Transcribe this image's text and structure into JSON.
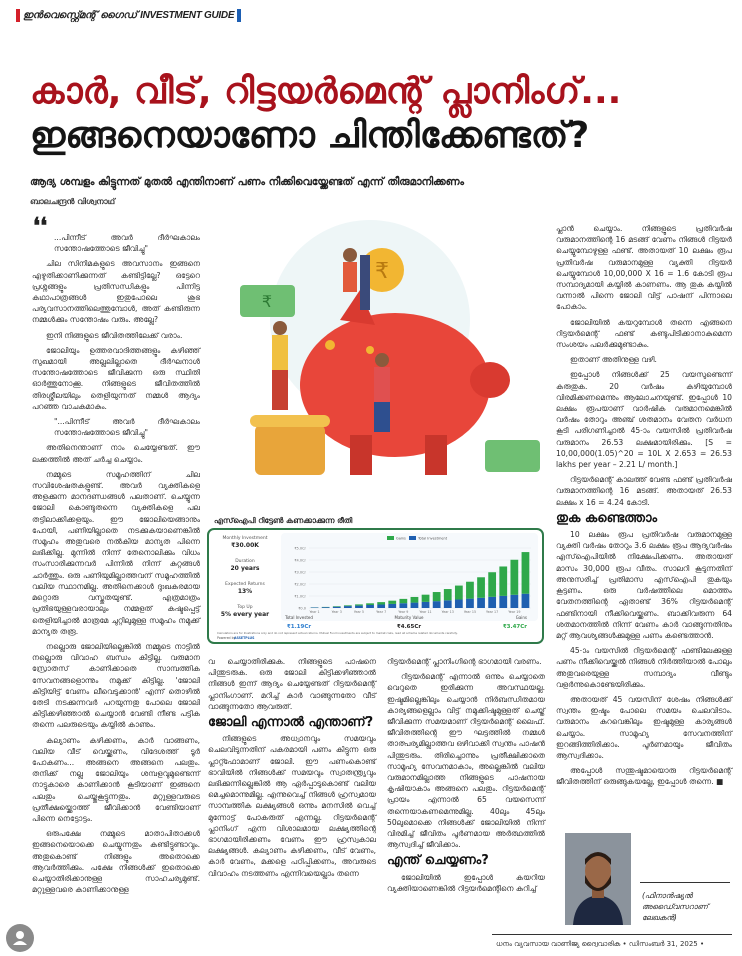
{
  "section_tag": {
    "ml": "ഇൻവെസ്റ്റ്മെന്റ് ഗൈഡ്",
    "en": "INVESTMENT GUIDE",
    "colors": {
      "left_bar": "#d4202a",
      "right_bar": "#1d5fb3"
    }
  },
  "headline": {
    "line1": "കാർ, വീട്, റിട്ടയർമെന്റ് പ്ലാനിംഗ്...",
    "line2": "ഇങ്ങനെയാണോ ചിന്തിക്കേണ്ടത്?",
    "colors": {
      "line1": "#a8121c",
      "line2": "#151515"
    }
  },
  "subheadline": "ആദ്യ ശമ്പളം കിട്ടുന്നത് മുതൽ എന്തിനാണ് പണം നീക്കിവെയ്ക്കേണ്ടത് എന്ന് തീരുമാനിക്കണം",
  "author": "ബാലചന്ദ്രൻ വിശ്വനാഥ്",
  "quote_mark": "❛❛",
  "column1": [
    {
      "type": "quote",
      "text": "...പിന്നീട് അവർ ദീർഘകാലം സന്തോഷത്തോടെ ജീവിച്ചു\""
    },
    {
      "type": "p",
      "text": "ചില സിനിമകളുടെ അവസാനം ഇങ്ങനെ എഴുതിക്കാണിക്കുന്നത് കണ്ടിട്ടില്ലേ? ഒട്ടേറെ പ്രശ്നങ്ങളും പ്രതിസന്ധികളും പിന്നിട്ട കഥാപാത്രങ്ങൾ ഇതുപോലെ ശുഭ പര്യവസാനത്തിലെത്തുമ്പോൾ, അത് കണ്ടിരുന്ന നമ്മൾക്കും സന്തോഷം വരും. അല്ലേ?"
    },
    {
      "type": "p",
      "text": "ഇനി നിങ്ങളുടെ ജീവിതത്തിലേക്ക് വരാം."
    },
    {
      "type": "p",
      "text": "ജോലിയും ഉത്തരവാദിത്തങ്ങളും കഴിഞ്ഞ് സുഖമായി അല്ലലില്ലാതെ ദീർഘനാൾ സന്തോഷത്തോടെ ജീവിക്കുന്ന ഒരു സ്ഥിതി ഓർത്തുനോക്കൂ. നിങ്ങളുടെ ജീവിതത്തിൽ തിരശ്ശീലയിലും തെളിയുന്നത് നമ്മൾ ആദ്യം പറഞ്ഞ വാചകമാകും."
    },
    {
      "type": "quote",
      "text": "\"...പിന്നീട് അവർ ദീർഘകാലം സന്തോഷത്തോടെ ജീവിച്ചു\""
    },
    {
      "type": "p",
      "text": "അതിനെന്താണ് നാം ചെയ്യേണ്ടത്. ഈ ലക്കത്തിൽ അത് ചർച്ച ചെയ്യാം."
    },
    {
      "type": "p",
      "text": "നമ്മുടെ സമൂഹത്തിന് ചില സവിശേഷതകളുണ്ട്. അവർ വ്യക്തികളെ അളക്കുന്ന മാനദണ്ഡങ്ങൾ പലതാണ്. ചെയ്യുന്ന ജോലി കൊണ്ടുതന്നെ വ്യക്തികളെ പല തട്ടിലാക്കിക്കളയും. ഈ ജോലിയെങ്ങാനും പോയി, പണിയില്ലാതെ നടക്കുകയാണെങ്കിൽ സമൂഹം അതുവരെ നൽകിയ മാന്യത പിന്നെ ലഭിക്കില്ല. മുന്നിൽ നിന്ന് തേനൊലിക്കും വിധം സംസാരിക്കുന്നവർ പിന്നിൽ നിന്ന് കുറ്റങ്ങൾ ചാർത്തും. ഒരു പണിയുമില്ലാത്തവന് സമൂഹത്തിൽ വലിയ സ്ഥാനമില്ല. അതിനെക്കാൾ ദുഃഖകരമായ മറ്റൊരു വസ്തുതയുണ്ട്. എത്രമാത്രം പ്രതിഭയുള്ളവരായാലും നമ്മളത് കഷ്ടപ്പെട്ട് തെളിയിച്ചാൽ മാത്രമേ ചുറ്റിലുമുള്ള സമൂഹം നമുക്ക് മാന്യത തരൂ."
    },
    {
      "type": "p",
      "text": "നല്ലൊരു ജോലിയില്ലെങ്കിൽ നമ്മുടെ നാട്ടിൽ നല്ലൊരു വിവാഹ ബന്ധം കിട്ടില്ല. വരുമാന സ്രോതസ് കാണിക്കാതെ സാമ്പത്തിക സേവനങ്ങളൊന്നും നമുക്ക് കിട്ടില്ല. 'ജോലി കിട്ടിയിട്ട് വേണം ലീവെടുക്കാൻ' എന്ന് തൊഴിൽ തേടി നടക്കുന്നവർ പറയുന്നതു പോലെ ജോലി കിട്ടിക്കഴിഞ്ഞാൽ ചെയ്യാൻ വേണ്ടി നീണ്ട പട്ടിക തന്നെ പലരുടെയും കയ്യിൽ കാണും."
    },
    {
      "type": "p",
      "text": "കല്യാണം കഴിക്കണം, കാർ വാങ്ങണം, വലിയ വീട് വെയ്ക്കണം, വിദേശത്ത് ടൂർ പോകണം... അങ്ങനെ അങ്ങനെ പലതും. തനിക്ക് നല്ല ജോലിയും ശമ്പളവുമുണ്ടെന്ന് നാട്ടുകാരെ കാണിക്കാൻ കൂടിയാണ് ഇങ്ങനെ പലതും ചെയ്തുകൂട്ടുന്നതും. മറ്റുള്ളവരുടെ പ്രതീക്ഷയ്ക്കൊത്ത് ജീവിക്കാൻ വേണ്ടിയാണ് പിന്നെ നെട്ടോട്ടം."
    },
    {
      "type": "p",
      "text": "ഒരുപക്ഷേ നമ്മുടെ മാതാപിതാക്കൾ ഇങ്ങനെയൊക്കെ ചെയ്യുന്നതും കണ്ടിട്ടുണ്ടാവും. അതുകൊണ്ട് നിങ്ങളും അതൊക്കെ ആവർത്തിക്കും. പക്ഷേ നിങ്ങൾക്ക് ഇതൊക്കെ ചെയ്യാതിരിക്കാനുള്ള സാഹചര്യമുണ്ട്. മറ്റുള്ളവരെ കാണിക്കാനുള്ള"
    }
  ],
  "column2": [
    {
      "type": "p-cont",
      "text": "വ ചെയ്യാതിരിക്കുക. നിങ്ങളുടെ പാഷനെ പിന്തുടരുക. ഒരു ജോലി കിട്ടിക്കഴിഞ്ഞാൽ നിങ്ങൾ ഇന്ന് ആദ്യം ചെയ്യേണ്ടത് റിട്ടയർമെന്റ് പ്ലാനിംഗാണ്. മറിച്ച് കാർ വാങ്ങുന്നതോ വീട് വാങ്ങുന്നതോ ആവരുത്."
    },
    {
      "type": "h",
      "text": "ജോലി എന്നാൽ എന്താണ്?"
    },
    {
      "type": "p",
      "text": "നിങ്ങളുടെ അധ്വാനവും സമയവും ചെലവിടുന്നതിന് പകരമായി പണം കിട്ടുന്ന ഒരു പ്ലാറ്റ്ഫോമാണ് ജോലി. ഈ പണംകൊണ്ട് ഭാവിയിൽ നിങ്ങൾക്ക് സമയവും സ്വാതന്ത്ര്യവും ലഭിക്കുന്നില്ലെങ്കിൽ ആ ഏർപ്പാടുകൊണ്ട് വലിയ മെച്ചമൊന്നുമില്ല. എന്നുവെച്ച് നിങ്ങൾ ഹ്രസ്വമായ സാമ്പത്തിക ലക്ഷ്യങ്ങൾ ഒന്നും മനസിൽ വെച്ച് മുന്നോട്ട് പോകരുത് എന്നല്ല. റിട്ടയർമെന്റ് പ്ലാനിംഗ് എന്ന വിശാലമായ ലക്ഷ്യത്തിന്റെ ഭാഗമായിരിക്കണം വേണം ഈ ഹ്രസ്വകാല ലക്ഷ്യങ്ങൾ. കല്യാണം കഴിക്കണം, വീട് വേണം, കാർ വേണം, മക്കളെ പഠിപ്പിക്കണം, അവരുടെ വിവാഹം നടത്തണം എന്നിവയെല്ലാം തന്നെ"
    }
  ],
  "column3": [
    {
      "type": "p-cont",
      "text": "റിട്ടയർമെന്റ് പ്ലാനിംഗിന്റെ ഭാഗമായി വരണം."
    },
    {
      "type": "p",
      "text": "റിട്ടയർമെന്റ് എന്നാൽ ഒന്നും ചെയ്യാതെ വെറുതെ ഇരിക്കുന്ന അവസ്ഥയല്ല. ഇഷ്ടമില്ലെങ്കിലും ചെയ്യാൻ നിർബന്ധിതമായ കാര്യങ്ങളെല്ലാം വിട്ട് നമുക്കിഷ്ടമുള്ളത് ചെയ്ത് ജീവിക്കുന്ന സമയമാണ് റിട്ടയർമെന്റ് ലൈഫ്. ജീവിതത്തിന്റെ ഈ ഘട്ടത്തിൽ നമ്മൾ താത്പര്യമില്ലാത്തവ ഒഴിവാക്കി സ്വന്തം പാഷൻ പിന്തുടരും. തിരിച്ചൊന്നും പ്രതീക്ഷിക്കാതെ സാമൂഹ്യ സേവനമാകാം, അല്ലെങ്കിൽ വലിയ വരുമാനമില്ലാത്ത നിങ്ങളുടെ പാഷനായ കൃഷിയാകാം അങ്ങനെ പലതും. റിട്ടയർമെന്റ് പ്രായം എന്നാൽ 65 വയസെന്ന് തന്നെയാകണമെന്നുമില്ല. 40ലും 45ലും 50ലുമൊക്കെ നിങ്ങൾക്ക് ജോലിയിൽ നിന്ന് വിരമിച്ച് ജീവിതം പൂർണമായ അർത്ഥത്തിൽ ആസ്വദിച്ച് ജീവിക്കാം."
    },
    {
      "type": "h",
      "text": "എന്ത് ചെയ്യണം?"
    },
    {
      "type": "p",
      "text": "ജോലിയിൽ ഇപ്പോൾ കയറിയ വ്യക്തിയാണെങ്കിൽ റിട്ടയർമെന്റിനെ കുറിച്ച്"
    }
  ],
  "column4": [
    {
      "type": "p-cont",
      "text": "പ്ലാൻ ചെയ്യാം. നിങ്ങളുടെ പ്രതിവർഷ വരുമാനത്തിന്റെ 16 മടങ്ങ് വേണം നിങ്ങൾ റിട്ടയർ ചെയ്യുമ്പോഴുള്ള ഫണ്ട്. അതായത് 10 ലക്ഷം രൂപ പ്രതിവർഷ വരുമാനമുള്ള വ്യക്തി റിട്ടയർ ചെയ്യുമ്പോൾ 10,00,000 X 16 = 1.6 കോടി രൂപ സമ്പാദ്യമായി കയ്യിൽ കാണണം. ആ തുക കയ്യിൽ വന്നാൽ പിന്നെ ജോലി വിട്ട് പാഷന് പിന്നാലെ പോകാം."
    },
    {
      "type": "p",
      "text": "ജോലിയിൽ കയറുമ്പോൾ തന്നെ എങ്ങനെ റിട്ടയർമെന്റ് ഫണ്ട് കണ്ടുപിടിക്കാനാകുമെന്ന സംശയം പലർക്കുമുണ്ടാകും."
    },
    {
      "type": "p",
      "text": "ഇതാണ് അതിനുള്ള വഴി."
    },
    {
      "type": "p",
      "text": "ഇപ്പോൾ നിങ്ങൾക്ക് 25 വയസുണ്ടെന്ന് കരുതുക. 20 വർഷം കഴിയുമ്പോൾ വിരമിക്കണമെന്നും ആലോചനയുണ്ട്. ഇപ്പോൾ 10 ലക്ഷം രൂപയാണ് വാർഷിക വരുമാനമെങ്കിൽ വർഷം തോറും അഞ്ച് ശതമാനം വേതന വർധന കൂടി പരിഗണിച്ചാൽ 45-ാം വയസിൽ പ്രതിവർഷ വരുമാനം 26.53 ലക്ഷമായിരിക്കും. [S = 10,00,000(1.05)^20 = 10L X 2.653 = 26.53 lakhs per year – 2.21 L/ month.]"
    },
    {
      "type": "p",
      "text": "റിട്ടയർമെന്റ് കാലത്ത് വേണ്ട ഫണ്ട് പ്രതിവർഷ വരുമാനത്തിന്റെ 16 മടങ്ങ്. അതായത് 26.53 ലക്ഷം x 16 = 4.24 കോടി."
    },
    {
      "type": "h",
      "text": "തുക കണ്ടെത്താം"
    },
    {
      "type": "p",
      "text": "10 ലക്ഷം രൂപ പ്രതിവർഷ വരുമാനമുള്ള വ്യക്തി വർഷം തോറും 3.6 ലക്ഷം രൂപ ആദ്യവർഷം എസ്ഐപിയിൽ നിക്ഷേപിക്കണം. അതായത് മാസം 30,000 രൂപ വീതം. സാലറി കൂടുന്നതിന് അനുസരിച്ച് പ്രതിമാസ എസ്ഐപി തുകയും കൂട്ടണം. ഒരു വർഷത്തിലെ മൊത്തം വേതനത്തിന്റെ ഏതാണ്ട് 36% റിട്ടയർമെന്റ് ഫണ്ടിനായി നീക്കിവെയ്ക്കണം. ബാക്കിവരുന്ന 64 ശതമാനത്തിൽ നിന്ന് വേണം കാർ വാങ്ങുന്നതിനും മറ്റ് ആവശ്യങ്ങൾക്കുമുള്ള പണം കണ്ടെത്താൻ."
    },
    {
      "type": "p",
      "text": "45-ാം വയസിൽ റിട്ടയർമെന്റ് ഫണ്ടിലേക്കുള്ള പണം നീക്കിവെയ്ക്കൽ നിങ്ങൾ നിർത്തിയാൽ പോലും അതുവരെയുള്ള സമ്പാദ്യം വീണ്ടും വളർന്നുകൊണ്ടേയിരിക്കും."
    },
    {
      "type": "p",
      "text": "അതായത് 45 വയസിന് ശേഷം നിങ്ങൾക്ക് സ്വന്തം ഇഷ്ടം പോലെ സമയം ചെലവിടാം. വരുമാനം കുറവെങ്കിലും ഇഷ്ടമുള്ള കാര്യങ്ങൾ ചെയ്യാം. സാമൂഹ്യ സേവനത്തിന് ഇറങ്ങിത്തിരിക്കാം. പൂർണമായും ജീവിതം ആസ്വദിക്കാം."
    },
    {
      "type": "p",
      "text": "അപ്പോൾ സന്തുഷ്ടമായൊരു റിട്ടയർമെന്റ് ജീവിതത്തിന് ഒരുങ്ങുകയല്ലേ, ഇപ്പോൾ തന്നെ. ■"
    }
  ],
  "chart_caption": "എസ്ഐപി റിട്ടേൺ കണക്കാക്കുന്ന രീതി",
  "calculator": {
    "inputs": [
      {
        "label": "Monthly Investment",
        "value": "₹30.00K"
      },
      {
        "label": "Duration",
        "value": "20 years"
      },
      {
        "label": "Expected Returns",
        "value": "13%"
      },
      {
        "label": "Top Up",
        "value": "5% every year"
      }
    ],
    "summary": [
      {
        "label": "Total Invested",
        "value": "₹1.19Cr",
        "color": "#2f7fd0"
      },
      {
        "label": "Maturity Value",
        "value": "₹4.65Cr",
        "color": "#222222"
      },
      {
        "label": "Gains",
        "value": "₹3.47Cr",
        "color": "#2fa84a"
      }
    ],
    "disclaimer": "Calculators are for illustrations only and do not represent actual returns. Mutual Fund investments are subject to market risks, read all scheme related documents carefully.",
    "powered_by": "Powered by",
    "brand": "ASSETPLUS"
  },
  "chart_data": {
    "type": "bar",
    "stacked": true,
    "categories": [
      "Year 1",
      "Year 2",
      "Year 3",
      "Year 4",
      "Year 5",
      "Year 6",
      "Year 7",
      "Year 8",
      "Year 9",
      "Year 10",
      "Year 11",
      "Year 12",
      "Year 13",
      "Year 14",
      "Year 15",
      "Year 16",
      "Year 17",
      "Year 18",
      "Year 19",
      "Year 20"
    ],
    "tick_labels_x": [
      "Year 1",
      "Year 3",
      "Year 5",
      "Year 7",
      "Year 9",
      "Year 11",
      "Year 13",
      "Year 15",
      "Year 17",
      "Year 19"
    ],
    "ylim": [
      0,
      5
    ],
    "y_unit": "Cr",
    "y_ticks": [
      "₹0.0",
      "₹1.0Cr",
      "₹2.0Cr",
      "₹3.0Cr",
      "₹4.0Cr",
      "₹5.0Cr"
    ],
    "grid": true,
    "legend": "top-center",
    "series": [
      {
        "name": "Total Investment",
        "color": "#1f5fb0",
        "values": [
          0.04,
          0.07,
          0.11,
          0.16,
          0.2,
          0.25,
          0.29,
          0.34,
          0.4,
          0.45,
          0.51,
          0.57,
          0.64,
          0.71,
          0.78,
          0.85,
          0.93,
          1.01,
          1.1,
          1.19
        ]
      },
      {
        "name": "Gains",
        "color": "#2fa84a",
        "values": [
          0.01,
          0.02,
          0.04,
          0.06,
          0.1,
          0.14,
          0.2,
          0.27,
          0.36,
          0.47,
          0.6,
          0.76,
          0.94,
          1.16,
          1.41,
          1.71,
          2.05,
          2.45,
          2.92,
          3.47
        ]
      }
    ]
  },
  "photo_caption": "(ഫിനാൻഷ്യൽ അഡൈ്വസറാണ് ലേഖകൻ)",
  "footer": "ധനം വ്യവസായ വാണിജ്യ ദ്വൈവാരിക  •  ഡിസംബർ 31, 2025  •"
}
